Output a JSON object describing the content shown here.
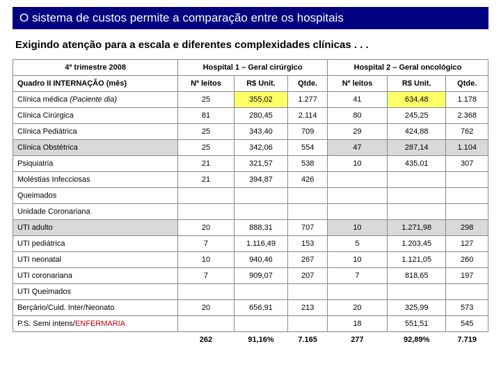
{
  "title": "O sistema de custos permite a comparação entre os hospitais",
  "subtitle": "Exigindo atenção para a escala e diferentes complexidades clínicas . . .",
  "header": {
    "period": "4º trimestre 2008",
    "h1": "Hospital 1 – Geral cirúrgico",
    "h2": "Hospital 2 – Geral oncológico",
    "rowhead": "Quadro II INTERNAÇÃO (mês)",
    "cols": [
      "Nº leitos",
      "R$ Unit.",
      "Qtde.",
      "Nº leitos",
      "R$ Unit.",
      "Qtde."
    ]
  },
  "rows": [
    {
      "label": "Clínica médica (Paciente dia)",
      "v": [
        "25",
        "355,02",
        "1.277",
        "41",
        "634,48",
        "1.178"
      ],
      "hl": [
        0,
        1,
        0,
        0,
        1,
        0
      ],
      "gray": 0,
      "ital": 1
    },
    {
      "label": "Clínica Cirúrgica",
      "v": [
        "81",
        "280,45",
        "2.114",
        "80",
        "245,25",
        "2.368"
      ],
      "hl": [
        0,
        0,
        0,
        0,
        0,
        0
      ],
      "gray": 0
    },
    {
      "label": "Clínica Pediátrica",
      "v": [
        "25",
        "343,40",
        "709",
        "29",
        "424,88",
        "762"
      ],
      "hl": [
        0,
        0,
        0,
        0,
        0,
        0
      ],
      "gray": 0
    },
    {
      "label": "Clínica Obstétrica",
      "v": [
        "25",
        "342,06",
        "554",
        "47",
        "287,14",
        "1.104"
      ],
      "hl": [
        0,
        0,
        0,
        0,
        0,
        0
      ],
      "gray": 1
    },
    {
      "label": "Psiquiatria",
      "v": [
        "21",
        "321,57",
        "538",
        "10",
        "435,01",
        "307"
      ],
      "hl": [
        0,
        0,
        0,
        0,
        0,
        0
      ],
      "gray": 0
    },
    {
      "label": "Moléstias Infecciosas",
      "v": [
        "21",
        "394,87",
        "426",
        "",
        "",
        ""
      ],
      "hl": [
        0,
        0,
        0,
        0,
        0,
        0
      ],
      "gray": 0
    },
    {
      "label": "Queimados",
      "v": [
        "",
        "",
        "",
        "",
        "",
        ""
      ],
      "hl": [
        0,
        0,
        0,
        0,
        0,
        0
      ],
      "gray": 0
    },
    {
      "label": "Unidade Coronariana",
      "v": [
        "",
        "",
        "",
        "",
        "",
        ""
      ],
      "hl": [
        0,
        0,
        0,
        0,
        0,
        0
      ],
      "gray": 0
    },
    {
      "label": "UTI adulto",
      "v": [
        "20",
        "888,31",
        "707",
        "10",
        "1.271,98",
        "298"
      ],
      "hl": [
        0,
        0,
        0,
        0,
        0,
        0
      ],
      "gray": 1
    },
    {
      "label": "UTI pediátrica",
      "v": [
        "7",
        "1.116,49",
        "153",
        "5",
        "1.203,45",
        "127"
      ],
      "hl": [
        0,
        0,
        0,
        0,
        0,
        0
      ],
      "gray": 0
    },
    {
      "label": "UTI neonatal",
      "v": [
        "10",
        "940,46",
        "267",
        "10",
        "1.121,05",
        "260"
      ],
      "hl": [
        0,
        0,
        0,
        0,
        0,
        0
      ],
      "gray": 0
    },
    {
      "label": "UTI coronariana",
      "v": [
        "7",
        "909,07",
        "207",
        "7",
        "818,65",
        "197"
      ],
      "hl": [
        0,
        0,
        0,
        0,
        0,
        0
      ],
      "gray": 0
    },
    {
      "label": "UTI Queimados",
      "v": [
        "",
        "",
        "",
        "",
        "",
        ""
      ],
      "hl": [
        0,
        0,
        0,
        0,
        0,
        0
      ],
      "gray": 0
    },
    {
      "label": "Berçário/Cuid. Inter/Neonato",
      "v": [
        "20",
        "656,91",
        "213",
        "20",
        "325,99",
        "573"
      ],
      "hl": [
        0,
        0,
        0,
        0,
        0,
        0
      ],
      "gray": 0
    },
    {
      "label_pre": "P.S. Semi intens/",
      "label_enf": "ENFERMARIA",
      "v": [
        "",
        "",
        "",
        "18",
        "551,51",
        "545"
      ],
      "hl": [
        0,
        0,
        0,
        0,
        0,
        0
      ],
      "gray": 0
    }
  ],
  "totals": {
    "v": [
      "262",
      "91,16%",
      "7.165",
      "277",
      "92,89%",
      "7.719"
    ],
    "hl": [
      0,
      1,
      0,
      0,
      1,
      0
    ]
  }
}
